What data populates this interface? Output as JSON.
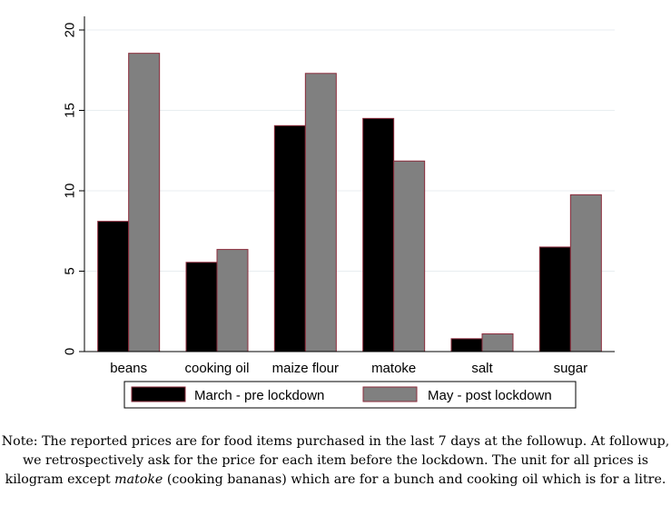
{
  "chart_data": {
    "type": "bar",
    "title": "",
    "xlabel": "",
    "ylabel": "",
    "categories": [
      "beans",
      "cooking oil",
      "maize flour",
      "matoke",
      "salt",
      "sugar"
    ],
    "series": [
      {
        "name": "March - pre lockdown",
        "color": "#000000",
        "values": [
          8.1,
          5.55,
          14.05,
          14.5,
          0.8,
          6.5
        ]
      },
      {
        "name": "May - post lockdown",
        "color": "#808080",
        "values": [
          18.55,
          6.35,
          17.3,
          11.85,
          1.1,
          9.75
        ]
      }
    ],
    "ylim": [
      0,
      20
    ],
    "yticks": [
      "0",
      "5",
      "10",
      "15",
      "20"
    ],
    "grid": true,
    "legend_position": "bottom",
    "bar_outline_color": "#8b2b3b"
  },
  "note": {
    "prefix": "Note: The reported prices are for food items purchased in the last 7 days at the followup. At followup, we retrospectively ask for the price for each item before the lockdown. The unit for all prices is kilogram except ",
    "emphasis": "matoke",
    "suffix": " (cooking bananas) which are for a bunch and cooking oil which is for a litre."
  }
}
